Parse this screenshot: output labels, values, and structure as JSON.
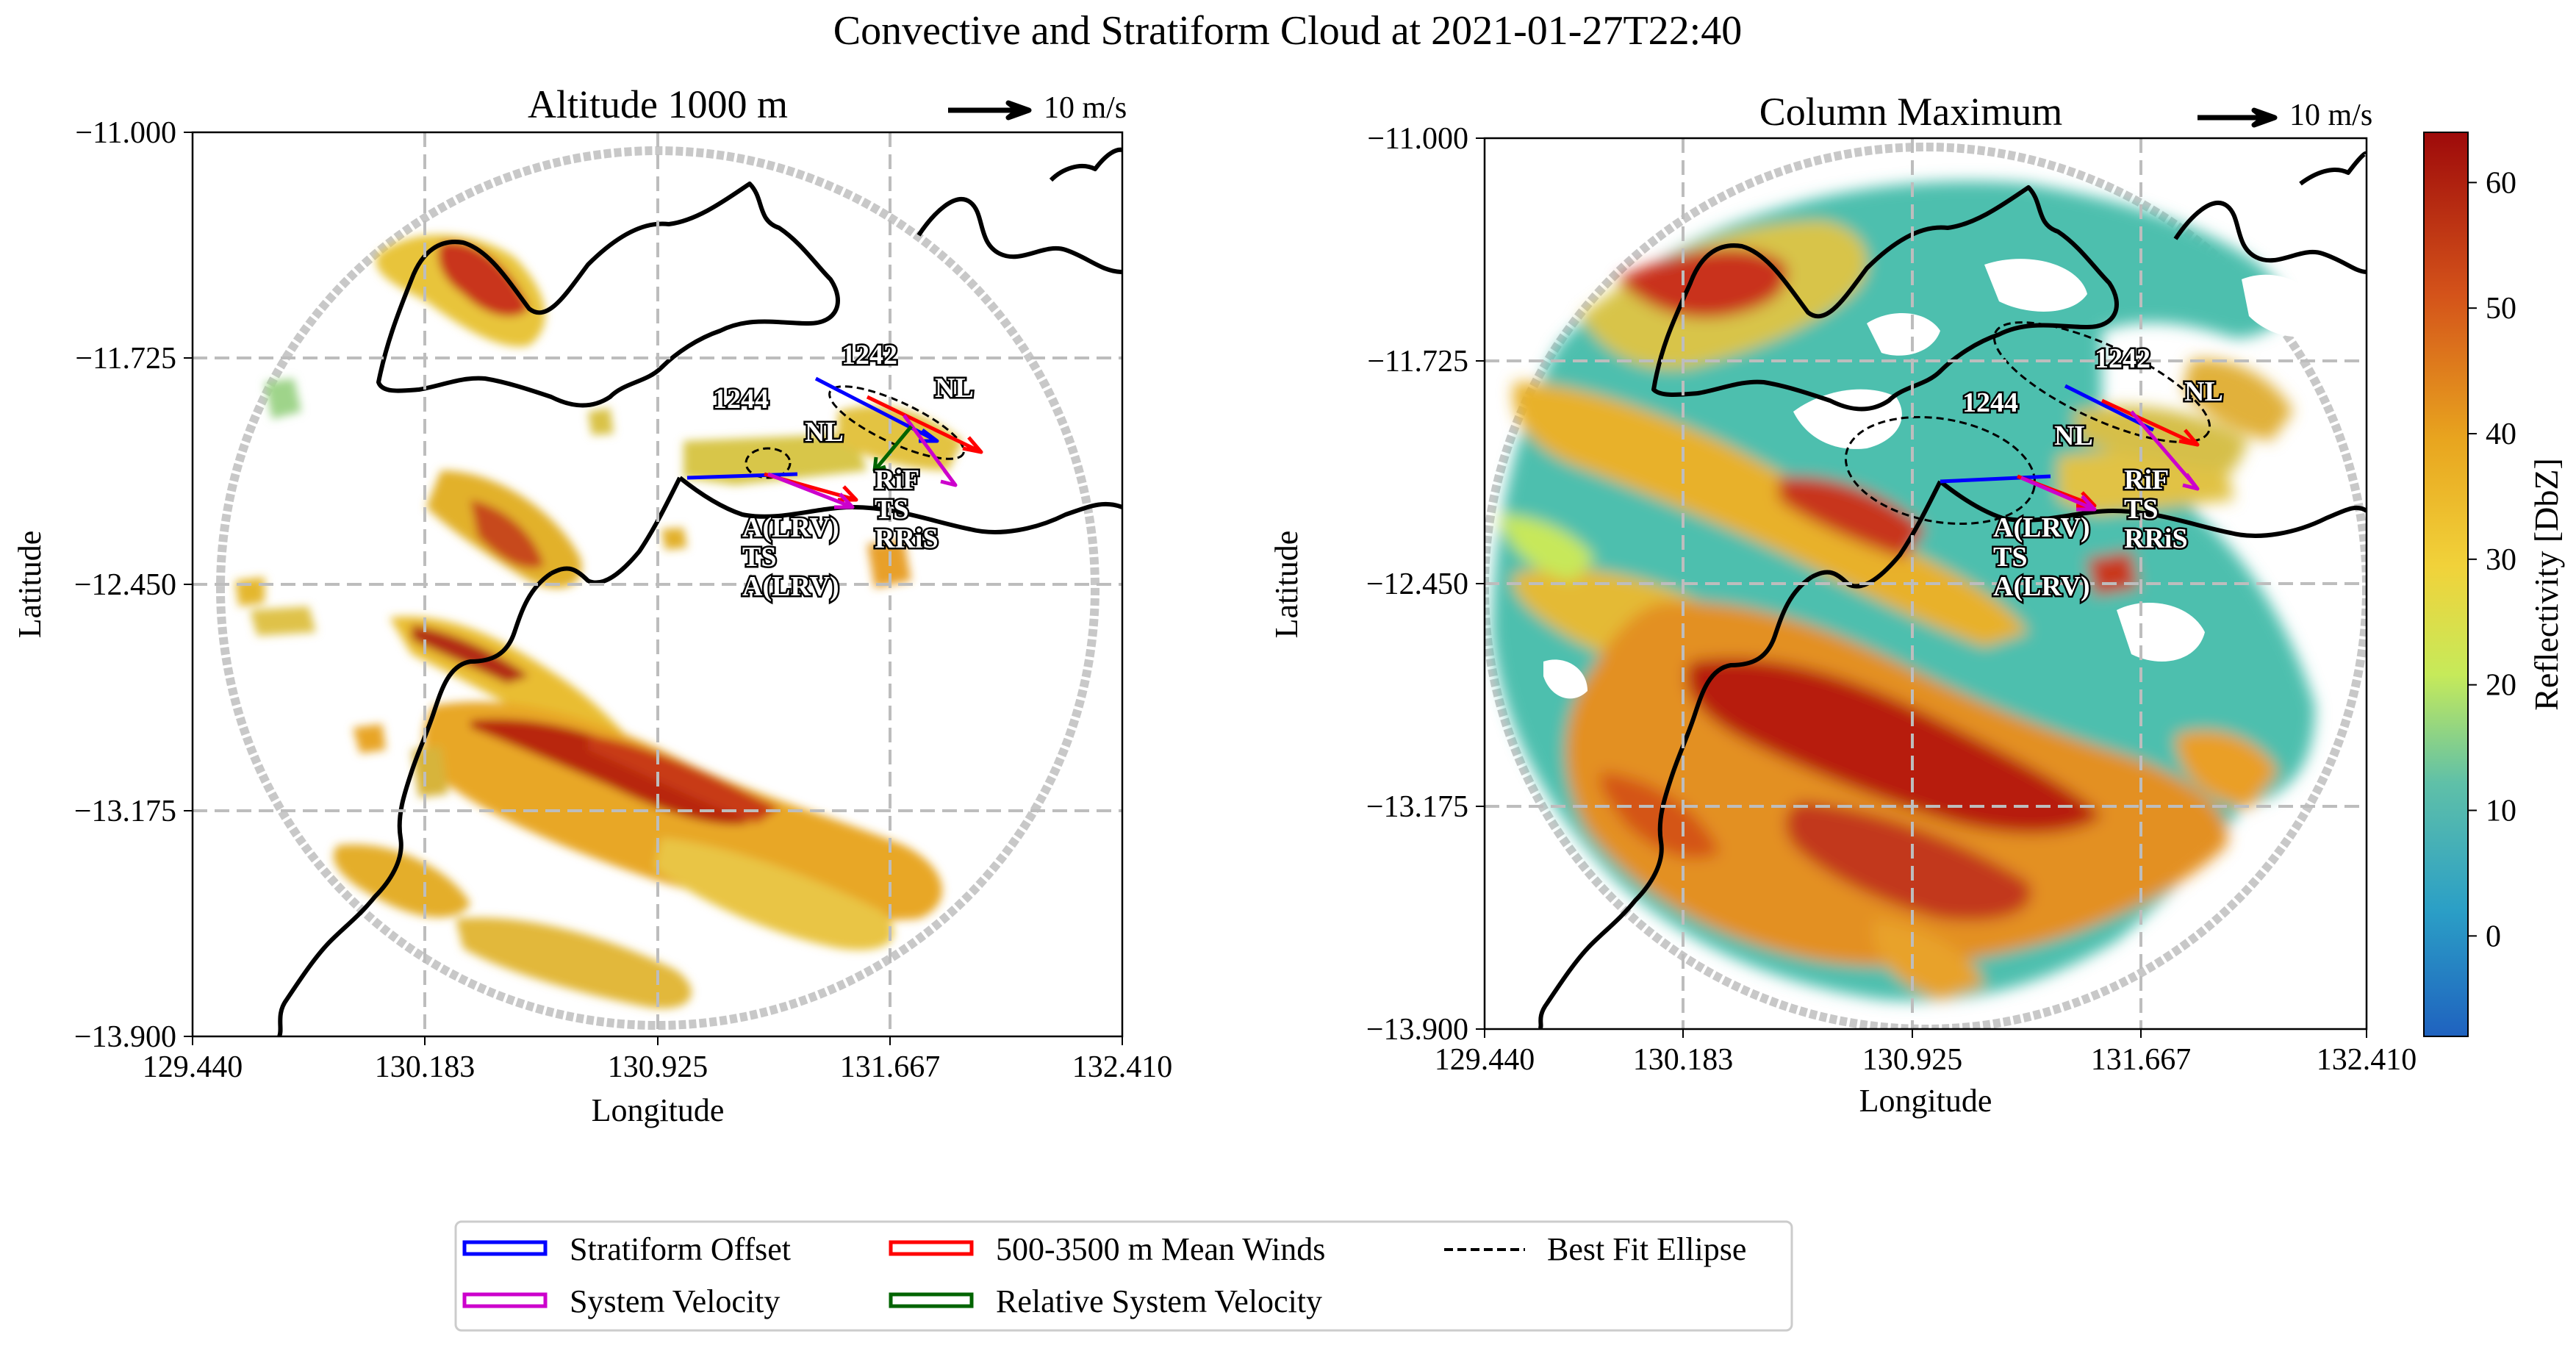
{
  "chart_data": {
    "type": "heatmap",
    "title": "Convective and Stratiform Cloud at 2021-01-27T22:40",
    "panels": [
      {
        "title": "Altitude 1000 m",
        "xlabel": "Longitude",
        "ylabel": "Latitude",
        "xlim": [
          129.44,
          132.41
        ],
        "ylim": [
          -13.9,
          -11.0
        ],
        "xticks": [
          "129.440",
          "130.183",
          "130.925",
          "131.667",
          "132.410"
        ],
        "yticks": [
          "−11.000",
          "−11.725",
          "−12.450",
          "−13.175",
          "−13.900"
        ],
        "scale_arrow_label": "10 m/s",
        "systems": [
          {
            "id": "1242",
            "lon": 131.72,
            "lat": -11.93,
            "labels": [
              "NL"
            ],
            "below_labels": [
              "RiF",
              "TS",
              "RRiS"
            ]
          },
          {
            "id": "1244",
            "lon": 131.28,
            "lat": -12.03,
            "labels": [
              "NL"
            ],
            "below_labels": [
              "A(LRV)",
              "TS",
              "A(LRV)"
            ]
          }
        ]
      },
      {
        "title": "Column Maximum",
        "xlabel": "Longitude",
        "ylabel": "Latitude",
        "xlim": [
          129.44,
          132.41
        ],
        "ylim": [
          -13.9,
          -11.0
        ],
        "xticks": [
          "129.440",
          "130.183",
          "130.925",
          "131.667",
          "132.410"
        ],
        "yticks": [
          "−11.000",
          "−11.725",
          "−12.450",
          "−13.175",
          "−13.900"
        ],
        "scale_arrow_label": "10 m/s",
        "systems": [
          {
            "id": "1242",
            "lon": 131.72,
            "lat": -11.93,
            "labels": [
              "NL"
            ],
            "below_labels": [
              "RiF",
              "TS",
              "RRiS"
            ]
          },
          {
            "id": "1244",
            "lon": 131.28,
            "lat": -12.03,
            "labels": [
              "NL"
            ],
            "below_labels": [
              "A(LRV)",
              "TS",
              "A(LRV)"
            ]
          }
        ]
      }
    ],
    "colorbar": {
      "label": "Reflectivity [DbZ]",
      "range": [
        -8,
        64
      ],
      "ticks": [
        "0",
        "10",
        "20",
        "30",
        "40",
        "50",
        "60"
      ],
      "colors": [
        "#1f62bf",
        "#2b9fc6",
        "#5fc0a8",
        "#c6ea5a",
        "#f1d23a",
        "#e8a51f",
        "#d4531a",
        "#9e0a0a"
      ]
    },
    "legend": [
      {
        "label": "Stratiform Offset",
        "color": "#0000ff",
        "style": "arrow"
      },
      {
        "label": "500-3500 m Mean Winds",
        "color": "#ff0000",
        "style": "arrow"
      },
      {
        "label": "Best Fit Ellipse",
        "color": "#000000",
        "style": "dashed"
      },
      {
        "label": "System Velocity",
        "color": "#cc00cc",
        "style": "arrow"
      },
      {
        "label": "Relative System Velocity",
        "color": "#006400",
        "style": "arrow"
      }
    ]
  }
}
